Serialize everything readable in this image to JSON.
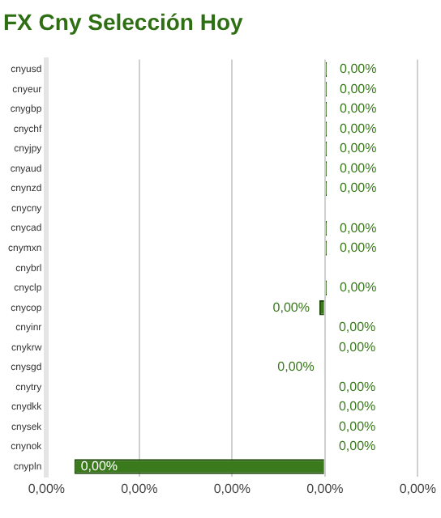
{
  "chart_data": {
    "type": "bar",
    "orientation": "horizontal",
    "title": "FX Cny Selección Hoy",
    "categories": [
      "cnyusd",
      "cnyeur",
      "cnygbp",
      "cnychf",
      "cnyjpy",
      "cnyaud",
      "cnynzd",
      "cnycny",
      "cnycad",
      "cnymxn",
      "cnybrl",
      "cnyclp",
      "cnycop",
      "cnyinr",
      "cnykrw",
      "cnysgd",
      "cnytry",
      "cnydkk",
      "cnysek",
      "cnynok",
      "cnypln"
    ],
    "values": [
      2e-05,
      2e-05,
      2e-05,
      2e-05,
      2e-05,
      2e-05,
      2e-05,
      null,
      2e-05,
      2e-05,
      null,
      2e-05,
      -6e-05,
      1e-05,
      1e-05,
      -1e-05,
      1e-05,
      1e-05,
      1e-05,
      1e-05,
      -0.0027
    ],
    "value_labels": [
      "0,00%",
      "0,00%",
      "0,00%",
      "0,00%",
      "0,00%",
      "0,00%",
      "0,00%",
      null,
      "0,00%",
      "0,00%",
      null,
      "0,00%",
      "0,00%",
      "0,00%",
      "0,00%",
      "0,00%",
      "0,00%",
      "0,00%",
      "0,00%",
      "0,00%",
      "0,00%"
    ],
    "color": "#3a7a1c",
    "xlim": [
      -0.003,
      0.001
    ],
    "xticks": [
      {
        "value": -0.003,
        "label": "0,00%"
      },
      {
        "value": -0.002,
        "label": "0,00%"
      },
      {
        "value": -0.001,
        "label": "0,00%"
      },
      {
        "value": 0,
        "label": "0,00%"
      },
      {
        "value": 0.001,
        "label": "0,00%"
      }
    ],
    "grid": "x",
    "legend": false
  }
}
